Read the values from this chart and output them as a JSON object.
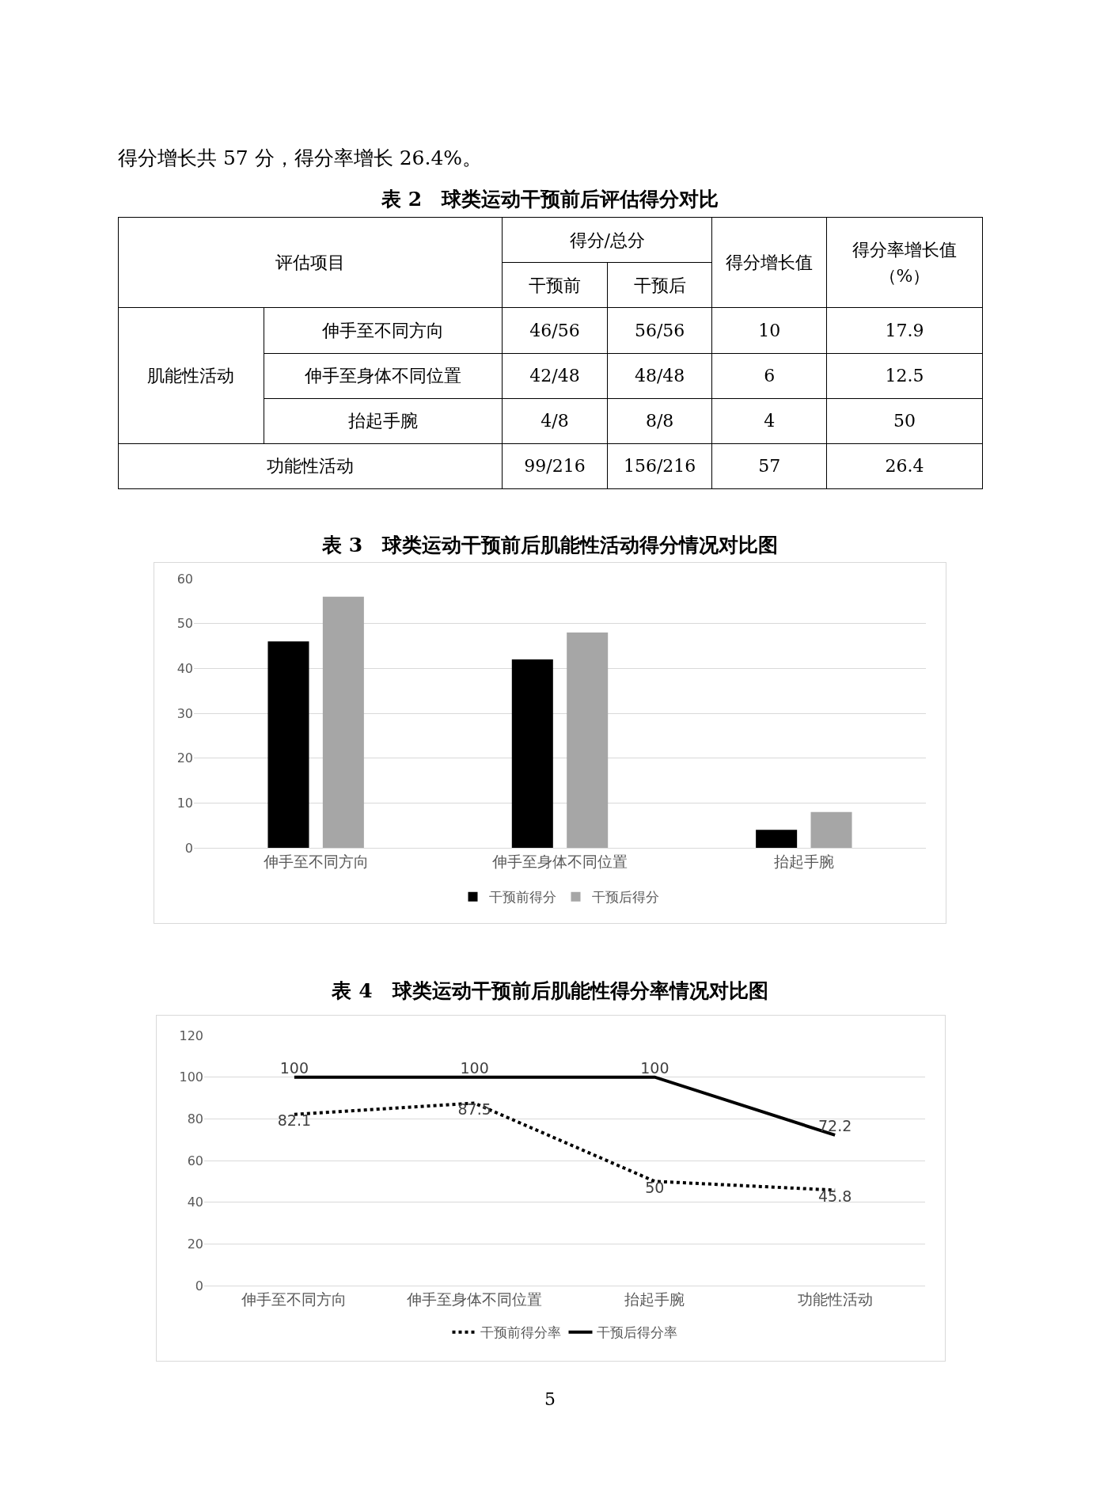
{
  "chart_data": [
    {
      "type": "other",
      "title": "表 2　球类运动干预前后评估得分对比",
      "annotations": [
        "得分增长共 57 分，得分率增长 26.4%。"
      ],
      "cell_labels": [
        [
          "评估项目",
          null,
          "得分/总分",
          null,
          "得分增长值",
          "得分率增长值（%）"
        ],
        [
          null,
          null,
          "干预前",
          "干预后",
          null,
          null
        ],
        [
          "肌能性活动",
          "伸手至不同方向",
          "46/56",
          "56/56",
          "10",
          "17.9"
        ],
        [
          null,
          "伸手至身体不同位置",
          "42/48",
          "48/48",
          "6",
          "12.5"
        ],
        [
          null,
          "抬起手腕",
          "4/8",
          "8/8",
          "4",
          "50"
        ],
        [
          "功能性活动",
          null,
          "99/216",
          "156/216",
          "57",
          "26.4"
        ]
      ]
    },
    {
      "type": "bar",
      "title": "表 3　球类运动干预前后肌能性活动得分情况对比图",
      "categories": [
        "伸手至不同方向",
        "伸手至身体不同位置",
        "抬起手腕"
      ],
      "series": [
        {
          "name": "干预前得分",
          "color": "#000000",
          "values": [
            46,
            42,
            4
          ]
        },
        {
          "name": "干预后得分",
          "color": "#a6a6a6",
          "values": [
            56,
            48,
            8
          ]
        }
      ],
      "ylim": [
        0,
        60
      ],
      "yticks": [
        0,
        10,
        20,
        30,
        40,
        50,
        60
      ],
      "grid": "y",
      "legend": "bottom"
    },
    {
      "type": "line",
      "title": "表 4　球类运动干预前后肌能性得分率情况对比图",
      "categories": [
        "伸手至不同方向",
        "伸手至身体不同位置",
        "抬起手腕",
        "功能性活动"
      ],
      "series": [
        {
          "name": "干预前得分率",
          "color": "#000000",
          "line_style": "dotted",
          "values": [
            82.1,
            87.5,
            50,
            45.8
          ]
        },
        {
          "name": "干预后得分率",
          "color": "#000000",
          "line_style": "solid",
          "values": [
            100,
            100,
            100,
            72.2
          ]
        }
      ],
      "ylim": [
        0,
        120
      ],
      "yticks": [
        0,
        20,
        40,
        60,
        80,
        100,
        120
      ],
      "grid": "y",
      "legend": "bottom",
      "data_labels": true,
      "marker": "none",
      "annotations": [
        "5"
      ]
    }
  ]
}
